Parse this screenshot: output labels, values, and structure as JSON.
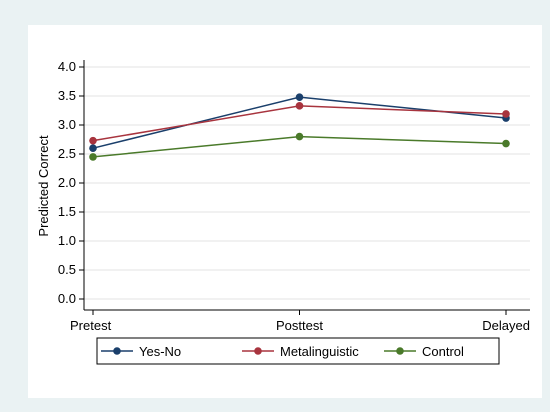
{
  "chart_data": {
    "type": "line",
    "title": "",
    "xlabel": "",
    "ylabel": "Predicted Correct",
    "categories": [
      "Pretest",
      "Posttest",
      "Delayed"
    ],
    "ylim": [
      0.0,
      4.0
    ],
    "yticks": [
      "0.0",
      "0.5",
      "1.0",
      "1.5",
      "2.0",
      "2.5",
      "3.0",
      "3.5",
      "4.0"
    ],
    "grid": true,
    "legend_position": "bottom",
    "series": [
      {
        "name": "Yes-No",
        "color": "#1a3f6b",
        "values": [
          2.6,
          3.48,
          3.12
        ]
      },
      {
        "name": "Metalinguistic",
        "color": "#a8343e",
        "values": [
          2.73,
          3.33,
          3.19
        ]
      },
      {
        "name": "Control",
        "color": "#4a7a2a",
        "values": [
          2.45,
          2.8,
          2.68
        ]
      }
    ]
  }
}
